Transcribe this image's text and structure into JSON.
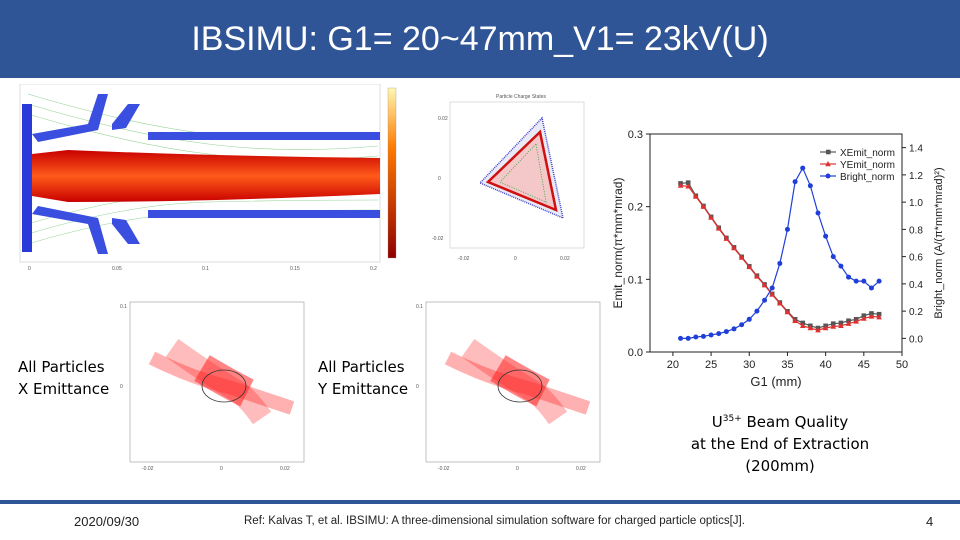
{
  "header": {
    "title": "IBSIMU: G1= 20~47mm_V1= 23kV(U)"
  },
  "labels": {
    "x_emit_line1": "All Particles",
    "x_emit_line2": "X Emittance",
    "y_emit_line1": "All Particles",
    "y_emit_line2": "Y Emittance",
    "quality_line1_pre": "U",
    "quality_sup": "35+",
    "quality_line1_post": " Beam Quality",
    "quality_line2": "at the End of Extraction",
    "quality_line3": "(200mm)"
  },
  "footer": {
    "date": "2020/09/30",
    "reference": "Ref: Kalvas T, et al. IBSIMU: A three-dimensional simulation software for charged particle optics[J].",
    "page": "4"
  },
  "chart_data": {
    "type": "line",
    "xlabel": "G1 (mm)",
    "ylabel_left": "Emit_norm(π*mm*mrad)",
    "ylabel_right": "Bright_norm (A/(π*mm*mrad)²)",
    "x_ticks": [
      "20",
      "25",
      "30",
      "35",
      "40",
      "45",
      "50"
    ],
    "y_left_ticks": [
      "0.0",
      "0.1",
      "0.2",
      "0.3"
    ],
    "y_right_ticks": [
      "0.0",
      "0.2",
      "0.4",
      "0.6",
      "0.8",
      "1.0",
      "1.2",
      "1.4"
    ],
    "xlim": [
      17,
      50
    ],
    "ylim_left": [
      0,
      0.3
    ],
    "ylim_right": [
      -0.1,
      1.5
    ],
    "x": [
      21,
      22,
      23,
      24,
      25,
      26,
      27,
      28,
      29,
      30,
      31,
      32,
      33,
      34,
      35,
      36,
      37,
      38,
      39,
      40,
      41,
      42,
      43,
      44,
      45,
      46,
      47
    ],
    "series": [
      {
        "name": "XEmit_norm",
        "axis": "left",
        "color": "#555555",
        "marker": "square",
        "values": [
          0.232,
          0.233,
          0.215,
          0.201,
          0.186,
          0.171,
          0.157,
          0.144,
          0.131,
          0.118,
          0.105,
          0.093,
          0.08,
          0.068,
          0.056,
          0.045,
          0.04,
          0.036,
          0.033,
          0.036,
          0.039,
          0.04,
          0.043,
          0.045,
          0.05,
          0.053,
          0.052
        ]
      },
      {
        "name": "YEmit_norm",
        "axis": "left",
        "color": "#e03030",
        "marker": "triangle",
        "values": [
          0.229,
          0.228,
          0.214,
          0.2,
          0.185,
          0.17,
          0.156,
          0.143,
          0.13,
          0.117,
          0.104,
          0.092,
          0.079,
          0.067,
          0.055,
          0.043,
          0.036,
          0.033,
          0.03,
          0.033,
          0.035,
          0.036,
          0.039,
          0.042,
          0.046,
          0.049,
          0.048
        ]
      },
      {
        "name": "Bright_norm",
        "axis": "right",
        "color": "#1f3fd8",
        "marker": "circle",
        "values": [
          0.0,
          0.0,
          0.01,
          0.015,
          0.025,
          0.035,
          0.05,
          0.07,
          0.1,
          0.14,
          0.2,
          0.28,
          0.37,
          0.55,
          0.8,
          1.15,
          1.25,
          1.12,
          0.92,
          0.75,
          0.6,
          0.53,
          0.45,
          0.42,
          0.42,
          0.37,
          0.42
        ]
      }
    ]
  }
}
